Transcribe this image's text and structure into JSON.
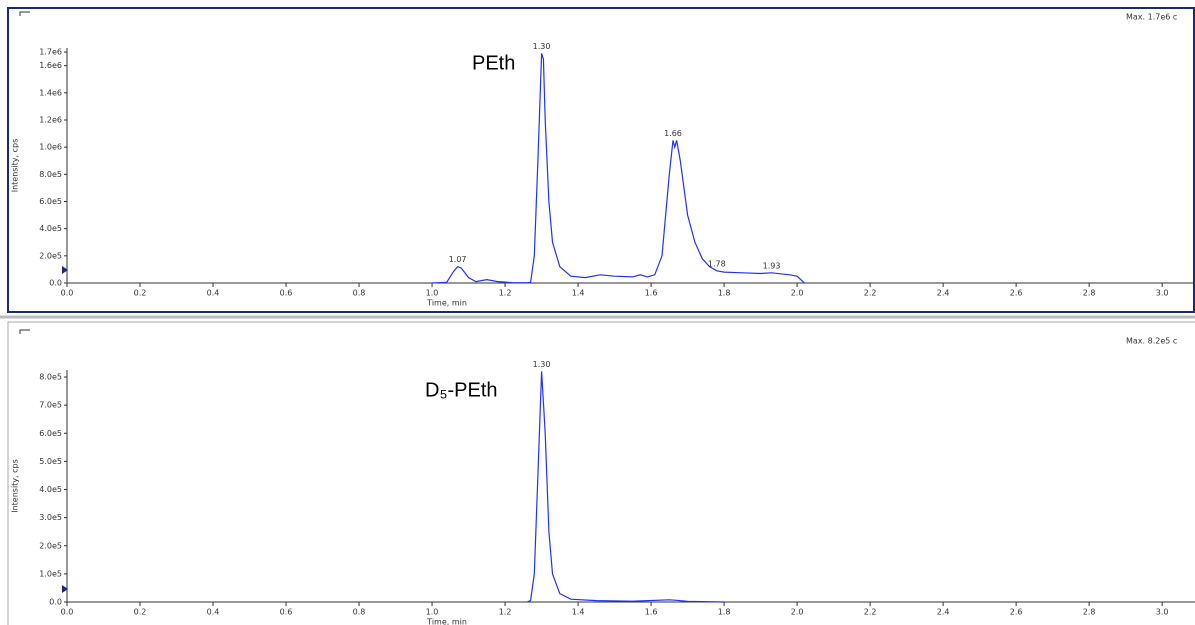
{
  "chart_data": [
    {
      "type": "line",
      "max_label": "Max. 1.7e6 c",
      "annotation": "PEth",
      "ylabel": "Intensity, cps",
      "xlabel": "Time, min",
      "color": "#2233ee",
      "xlim": [
        0,
        3.09
      ],
      "ylim": [
        0,
        1730000
      ],
      "xticks": [
        {
          "value": 0,
          "label": "0.0"
        },
        0.2,
        0.4,
        0.6,
        0.8,
        {
          "value": 1,
          "label": "1.0"
        },
        1.2,
        1.4,
        1.6,
        1.8,
        {
          "value": 2,
          "label": "2.0"
        },
        2.2,
        2.4,
        2.6,
        2.8,
        {
          "value": 3,
          "label": "3.0"
        }
      ],
      "yticks": [
        {
          "value": 0,
          "label": "0.0"
        },
        {
          "value": 200000,
          "label": "2.0e5"
        },
        {
          "value": 400000,
          "label": "4.0e5"
        },
        {
          "value": 600000,
          "label": "6.0e5"
        },
        {
          "value": 800000,
          "label": "8.0e5"
        },
        {
          "value": 1000000,
          "label": "1.0e6"
        },
        {
          "value": 1200000,
          "label": "1.2e6"
        },
        {
          "value": 1400000,
          "label": "1.4e6"
        },
        {
          "value": 1600000,
          "label": "1.6e6"
        },
        {
          "value": 1700000,
          "label": "1.7e6"
        }
      ],
      "x": [
        1.0,
        1.04,
        1.06,
        1.07,
        1.08,
        1.1,
        1.12,
        1.15,
        1.18,
        1.22,
        1.26,
        1.27,
        1.28,
        1.29,
        1.3,
        1.305,
        1.31,
        1.32,
        1.33,
        1.35,
        1.38,
        1.42,
        1.46,
        1.5,
        1.55,
        1.57,
        1.59,
        1.61,
        1.63,
        1.65,
        1.66,
        1.665,
        1.67,
        1.68,
        1.7,
        1.72,
        1.74,
        1.76,
        1.78,
        1.8,
        1.85,
        1.9,
        1.93,
        1.98,
        2.0,
        2.02
      ],
      "values": [
        0,
        5000,
        90000,
        120000,
        110000,
        40000,
        10000,
        25000,
        10000,
        3000,
        2000,
        5000,
        200000,
        900000,
        1690000,
        1650000,
        1200000,
        600000,
        300000,
        120000,
        50000,
        40000,
        60000,
        50000,
        45000,
        60000,
        45000,
        60000,
        200000,
        800000,
        1050000,
        1000000,
        1050000,
        900000,
        500000,
        300000,
        180000,
        120000,
        90000,
        80000,
        75000,
        70000,
        75000,
        60000,
        50000,
        0
      ],
      "peaks": [
        {
          "x": 1.07,
          "y": 120000,
          "label": "1.07"
        },
        {
          "x": 1.3,
          "y": 1690000,
          "label": "1.30"
        },
        {
          "x": 1.66,
          "y": 1050000,
          "label": "1.66"
        },
        {
          "x": 1.78,
          "y": 90000,
          "label": "1.78"
        },
        {
          "x": 1.93,
          "y": 75000,
          "label": "1.93"
        }
      ]
    },
    {
      "type": "line",
      "max_label": "Max. 8.2e5 c",
      "annotation": "D₅-PEth",
      "ylabel": "Intensity, cps",
      "xlabel": "Time, min",
      "color": "#2233ee",
      "xlim": [
        0,
        3.09
      ],
      "ylim": [
        0,
        825000
      ],
      "xticks": [
        {
          "value": 0,
          "label": "0.0"
        },
        0.2,
        0.4,
        0.6,
        0.8,
        {
          "value": 1,
          "label": "1.0"
        },
        1.2,
        1.4,
        1.6,
        1.8,
        {
          "value": 2,
          "label": "2.0"
        },
        2.2,
        2.4,
        2.6,
        2.8,
        {
          "value": 3,
          "label": "3.0"
        }
      ],
      "yticks": [
        {
          "value": 0,
          "label": "0.0"
        },
        {
          "value": 100000,
          "label": "1.0e5"
        },
        {
          "value": 200000,
          "label": "2.0e5"
        },
        {
          "value": 300000,
          "label": "3.0e5"
        },
        {
          "value": 400000,
          "label": "4.0e5"
        },
        {
          "value": 500000,
          "label": "5.0e5"
        },
        {
          "value": 600000,
          "label": "6.0e5"
        },
        {
          "value": 700000,
          "label": "7.0e5"
        },
        {
          "value": 800000,
          "label": "8.0e5"
        }
      ],
      "x": [
        1.26,
        1.27,
        1.28,
        1.29,
        1.3,
        1.31,
        1.32,
        1.33,
        1.35,
        1.38,
        1.45,
        1.55,
        1.65,
        1.67,
        1.7,
        1.8
      ],
      "values": [
        0,
        5000,
        100000,
        450000,
        820000,
        600000,
        250000,
        100000,
        30000,
        10000,
        5000,
        3000,
        8000,
        6000,
        2000,
        0
      ],
      "peaks": [
        {
          "x": 1.3,
          "y": 820000,
          "label": "1.30"
        }
      ]
    }
  ]
}
